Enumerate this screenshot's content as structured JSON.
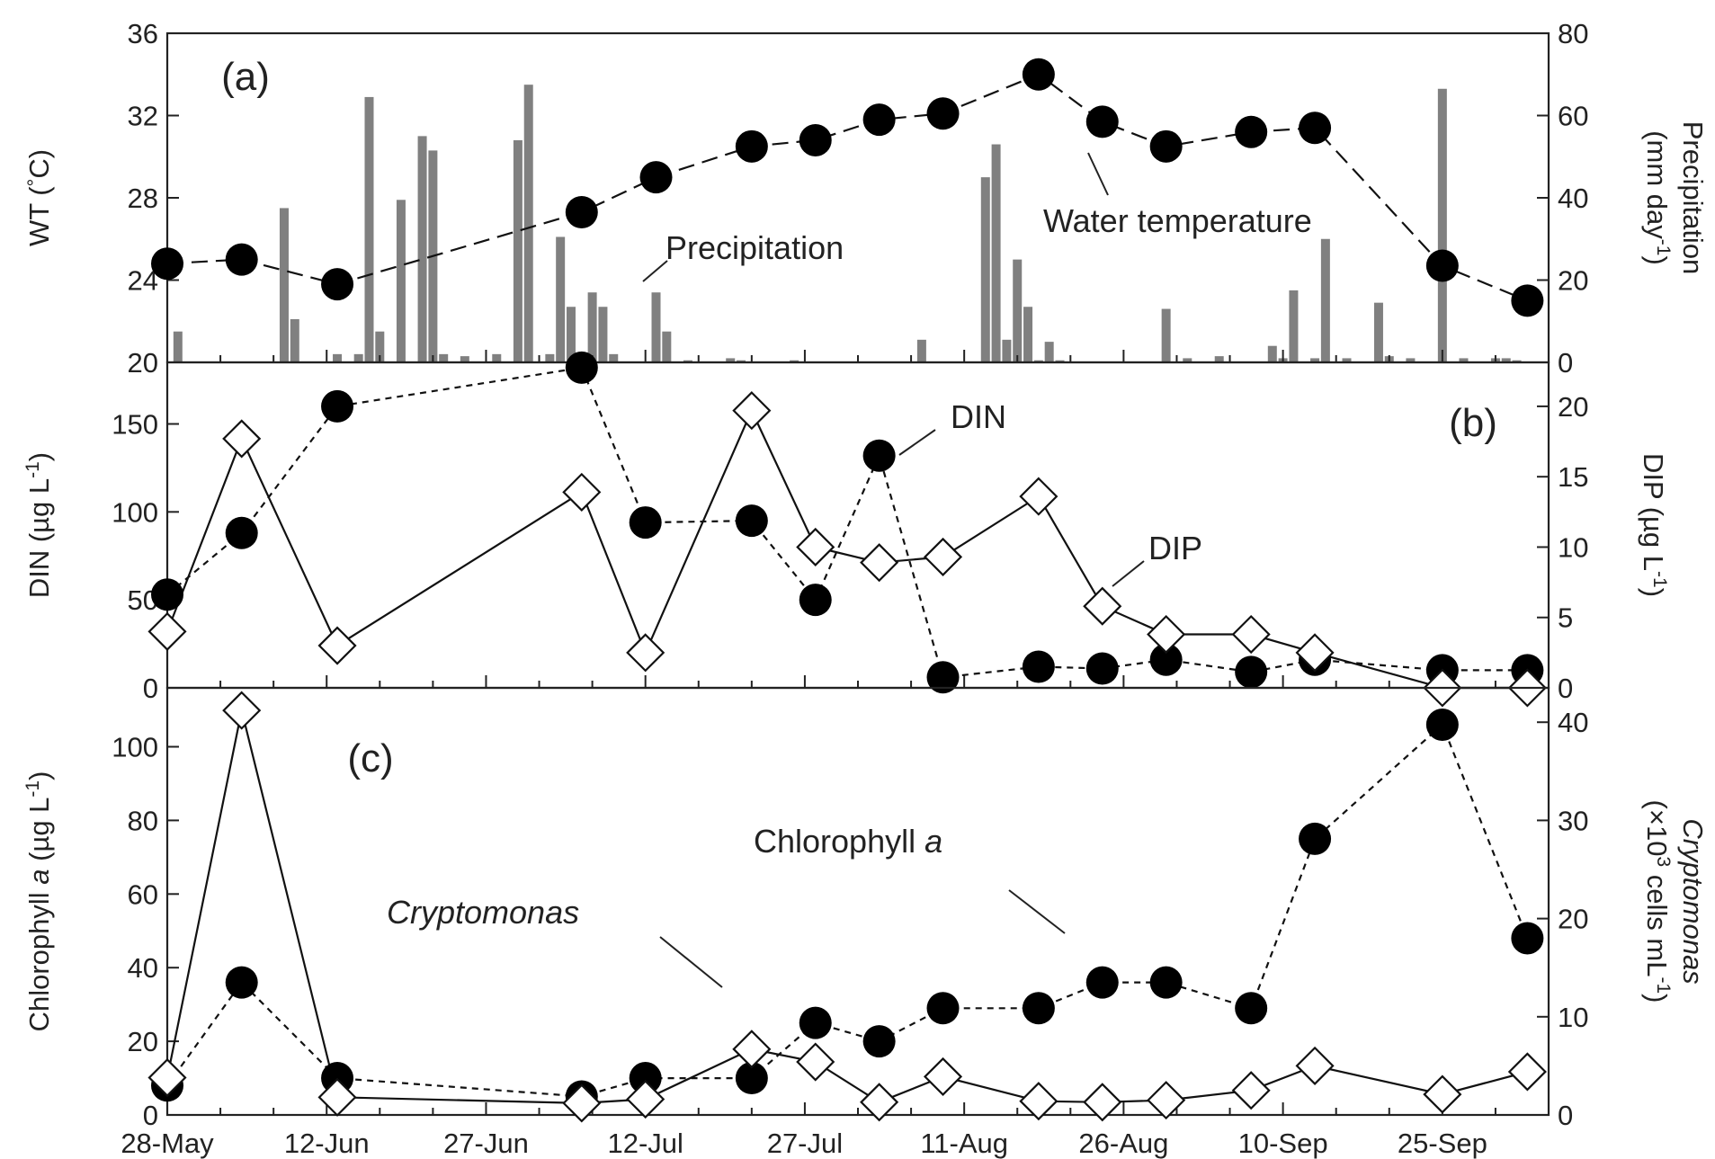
{
  "x_axis": {
    "tick_labels": [
      "28-May",
      "12-Jun",
      "27-Jun",
      "12-Jul",
      "27-Jul",
      "11-Aug",
      "26-Aug",
      "10-Sep",
      "25-Sep"
    ],
    "tick_days": [
      0,
      15,
      30,
      45,
      60,
      75,
      90,
      105,
      120
    ],
    "minor_step": 5,
    "xlim": [
      0,
      130
    ]
  },
  "chart_data": [
    {
      "type": "bar+line",
      "panel_label": "(a)",
      "left_axis": {
        "label_parts": [
          "WT (",
          "°",
          "C)"
        ],
        "ylim": [
          20,
          36
        ],
        "ticks": [
          20,
          24,
          28,
          32,
          36
        ]
      },
      "right_axis": {
        "label_parts": [
          "Precipitation",
          "(mm day",
          "-1",
          ")"
        ],
        "ylim": [
          0,
          80
        ],
        "ticks": [
          0,
          20,
          40,
          60,
          80
        ]
      },
      "annotations": [
        "Precipitation",
        "Water temperature"
      ],
      "series": [
        {
          "name": "Water temperature",
          "axis": "left",
          "style": "dashed",
          "marker": "filled-circle",
          "x": [
            "28-May",
            "4-Jun",
            "13-Jun",
            "6-Jul",
            "13-Jul",
            "22-Jul",
            "28-Jul",
            "3-Aug",
            "9-Aug",
            "18-Aug",
            "24-Aug",
            "30-Aug",
            "7-Sep",
            "13-Sep",
            "25-Sep",
            "3-Oct"
          ],
          "y": [
            24.8,
            25.0,
            23.8,
            27.3,
            29.0,
            30.5,
            30.8,
            31.8,
            32.1,
            34.0,
            31.7,
            30.5,
            31.2,
            31.4,
            24.7,
            23.0
          ]
        },
        {
          "name": "Precipitation",
          "axis": "right",
          "style": "bar",
          "x": [
            "29-May",
            "8-Jun",
            "9-Jun",
            "13-Jun",
            "15-Jun",
            "16-Jun",
            "17-Jun",
            "19-Jun",
            "21-Jun",
            "22-Jun",
            "23-Jun",
            "25-Jun",
            "28-Jun",
            "30-Jun",
            "1-Jul",
            "3-Jul",
            "4-Jul",
            "5-Jul",
            "7-Jul",
            "8-Jul",
            "9-Jul",
            "13-Jul",
            "14-Jul",
            "16-Jul",
            "20-Jul",
            "21-Jul",
            "26-Jul",
            "7-Aug",
            "13-Aug",
            "14-Aug",
            "15-Aug",
            "16-Aug",
            "17-Aug",
            "18-Aug",
            "19-Aug",
            "20-Aug",
            "30-Aug",
            "1-Sep",
            "4-Sep",
            "9-Sep",
            "10-Sep",
            "11-Sep",
            "13-Sep",
            "14-Sep",
            "16-Sep",
            "19-Sep",
            "20-Sep",
            "22-Sep",
            "25-Sep",
            "27-Sep",
            "30-Sep",
            "1-Oct",
            "2-Oct"
          ],
          "values": [
            7.5,
            37.5,
            10.5,
            2,
            2,
            64.5,
            7.5,
            39.5,
            55,
            51.5,
            2,
            1.5,
            2,
            54,
            67.5,
            2,
            30.5,
            13.5,
            17,
            13.5,
            2,
            17,
            7.5,
            0.5,
            1,
            0.5,
            0.5,
            5.5,
            45,
            53,
            5.5,
            25,
            13.5,
            0.5,
            5,
            0.5,
            13,
            1,
            1.5,
            4,
            1,
            17.5,
            1,
            30,
            1,
            14.5,
            1.5,
            1,
            66.5,
            1,
            1,
            1,
            0.5
          ]
        }
      ]
    },
    {
      "type": "line",
      "panel_label": "(b)",
      "left_axis": {
        "label_parts": [
          "DIN (µg L",
          "-1",
          ")"
        ],
        "ylim": [
          0,
          185
        ],
        "ticks": [
          0,
          50,
          100,
          150
        ]
      },
      "right_axis": {
        "label_parts": [
          "DIP (µg L",
          "-1",
          ")"
        ],
        "ylim": [
          0,
          23.125
        ],
        "ticks": [
          0,
          5,
          10,
          15,
          20
        ]
      },
      "annotations": [
        "DIN",
        "DIP"
      ],
      "series": [
        {
          "name": "DIN",
          "axis": "left",
          "style": "dotted",
          "marker": "filled-circle",
          "x": [
            "28-May",
            "4-Jun",
            "13-Jun",
            "6-Jul",
            "12-Jul",
            "22-Jul",
            "28-Jul",
            "3-Aug",
            "9-Aug",
            "18-Aug",
            "24-Aug",
            "30-Aug",
            "7-Sep",
            "13-Sep",
            "25-Sep",
            "3-Oct"
          ],
          "y": [
            53,
            88,
            160,
            182,
            94,
            95,
            50,
            132,
            6,
            12,
            11,
            16,
            9,
            16,
            10,
            10
          ]
        },
        {
          "name": "DIP",
          "axis": "right",
          "style": "solid",
          "marker": "open-diamond",
          "x": [
            "28-May",
            "4-Jun",
            "13-Jun",
            "6-Jul",
            "12-Jul",
            "22-Jul",
            "28-Jul",
            "3-Aug",
            "9-Aug",
            "18-Aug",
            "24-Aug",
            "30-Aug",
            "7-Sep",
            "13-Sep",
            "25-Sep",
            "3-Oct"
          ],
          "y": [
            4,
            17.7,
            3,
            13.9,
            2.5,
            19.7,
            10,
            8.9,
            9.3,
            13.6,
            5.8,
            3.8,
            3.8,
            2.5,
            0,
            0
          ]
        }
      ]
    },
    {
      "type": "line",
      "panel_label": "(c)",
      "left_axis": {
        "label_parts": [
          "Chlorophyll ",
          "a",
          " (µg L",
          "-1",
          ")"
        ],
        "ylim": [
          0,
          116
        ],
        "ticks": [
          0,
          20,
          40,
          60,
          80,
          100
        ]
      },
      "right_axis": {
        "label_parts": [
          "Cryptomonas",
          "(×10",
          "3",
          " cells mL",
          "-1",
          ")"
        ],
        "ylim": [
          0,
          43.5
        ],
        "ticks": [
          0,
          10,
          20,
          30,
          40
        ]
      },
      "annotations": [
        "Chlorophyll ",
        "a",
        "Cryptomonas"
      ],
      "series": [
        {
          "name": "Chlorophyll a",
          "axis": "left",
          "style": "dotted",
          "marker": "filled-circle",
          "x": [
            "28-May",
            "4-Jun",
            "13-Jun",
            "6-Jul",
            "12-Jul",
            "22-Jul",
            "28-Jul",
            "3-Aug",
            "9-Aug",
            "18-Aug",
            "24-Aug",
            "30-Aug",
            "7-Sep",
            "13-Sep",
            "25-Sep",
            "3-Oct"
          ],
          "y": [
            8,
            36,
            10,
            5,
            10,
            10,
            25,
            20,
            29,
            29,
            36,
            36,
            29,
            75,
            106,
            48
          ]
        },
        {
          "name": "Cryptomonas",
          "axis": "right",
          "style": "solid",
          "marker": "open-diamond",
          "x": [
            "28-May",
            "4-Jun",
            "13-Jun",
            "6-Jul",
            "12-Jul",
            "22-Jul",
            "28-Jul",
            "3-Aug",
            "9-Aug",
            "18-Aug",
            "24-Aug",
            "30-Aug",
            "7-Sep",
            "13-Sep",
            "25-Sep",
            "3-Oct"
          ],
          "y": [
            3.8,
            41.2,
            1.8,
            1.2,
            1.6,
            6.7,
            5.4,
            1.3,
            3.9,
            1.4,
            1.3,
            1.5,
            2.5,
            5.0,
            2.1,
            4.4
          ]
        }
      ]
    }
  ]
}
